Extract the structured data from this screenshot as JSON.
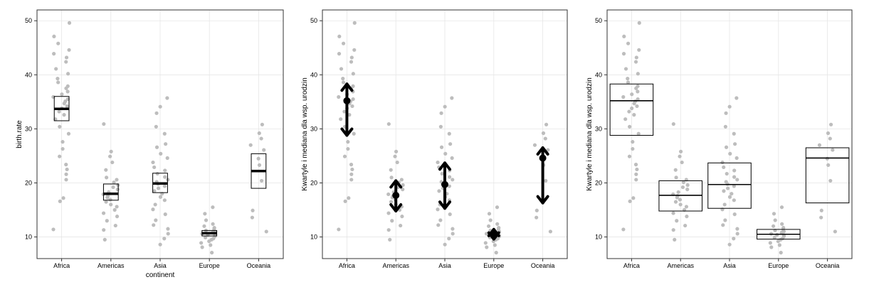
{
  "colors": {
    "point": "#bdbdbd",
    "grid": "#e6e6e6",
    "frame": "#333333",
    "mark": "#000000"
  },
  "chart_data": [
    {
      "type": "scatter",
      "variant": "box",
      "xlabel": "continent",
      "ylabel": "birth.rate",
      "categories": [
        "Africa",
        "Americas",
        "Asia",
        "Europe",
        "Oceania"
      ],
      "ylim": [
        6,
        52
      ],
      "yticks": [
        10,
        20,
        30,
        40,
        50
      ],
      "grid": true,
      "summary": [
        {
          "q1": 31.5,
          "median": 33.7,
          "q3": 36.0
        },
        {
          "q1": 16.8,
          "median": 18.0,
          "q3": 19.8
        },
        {
          "q1": 18.2,
          "median": 19.9,
          "q3": 21.8
        },
        {
          "q1": 10.2,
          "median": 10.7,
          "q3": 11.2
        },
        {
          "q1": 19.0,
          "median": 22.2,
          "q3": 25.4
        }
      ]
    },
    {
      "type": "scatter",
      "variant": "arrows",
      "xlabel": "",
      "ylabel": "Kwartyle i mediana dla wsp. urodzin",
      "categories": [
        "Africa",
        "Americas",
        "Asia",
        "Europe",
        "Oceania"
      ],
      "ylim": [
        6,
        52
      ],
      "yticks": [
        10,
        20,
        30,
        40,
        50
      ],
      "grid": true,
      "summary": [
        {
          "q1": 28.8,
          "median": 35.2,
          "q3": 38.3
        },
        {
          "q1": 14.8,
          "median": 17.7,
          "q3": 20.4
        },
        {
          "q1": 15.3,
          "median": 19.7,
          "q3": 23.7
        },
        {
          "q1": 9.6,
          "median": 10.5,
          "q3": 11.4
        },
        {
          "q1": 16.3,
          "median": 24.6,
          "q3": 26.5
        }
      ]
    },
    {
      "type": "scatter",
      "variant": "box",
      "xlabel": "",
      "ylabel": "Kwartyle i mediana dla wsp. urodzin",
      "categories": [
        "Africa",
        "Americas",
        "Asia",
        "Europe",
        "Oceania"
      ],
      "ylim": [
        6,
        52
      ],
      "yticks": [
        10,
        20,
        30,
        40,
        50
      ],
      "grid": true,
      "summary": [
        {
          "q1": 28.8,
          "median": 35.2,
          "q3": 38.3
        },
        {
          "q1": 14.8,
          "median": 17.7,
          "q3": 20.4
        },
        {
          "q1": 15.3,
          "median": 19.7,
          "q3": 23.7
        },
        {
          "q1": 9.6,
          "median": 10.5,
          "q3": 11.4
        },
        {
          "q1": 16.3,
          "median": 24.6,
          "q3": 26.5
        }
      ]
    }
  ],
  "points": {
    "Africa": [
      49.6,
      47.1,
      45.8,
      44.6,
      43.9,
      43.2,
      42.4,
      41.1,
      40.2,
      39.3,
      38.6,
      37.9,
      37.5,
      36.9,
      36.4,
      35.9,
      35.5,
      35.1,
      34.7,
      34.2,
      33.8,
      33.2,
      32.6,
      31.8,
      30.4,
      29.1,
      27.6,
      26.3,
      24.9,
      23.4,
      22.5,
      21.6,
      20.6,
      17.2,
      16.6,
      11.4
    ],
    "Americas": [
      30.9,
      25.8,
      24.9,
      23.8,
      22.4,
      21.0,
      20.6,
      20.1,
      19.6,
      19.2,
      18.8,
      18.3,
      17.9,
      17.6,
      17.3,
      16.9,
      16.5,
      16.0,
      15.6,
      15.0,
      14.4,
      13.8,
      13.0,
      12.1,
      11.3,
      9.5
    ],
    "Asia": [
      35.7,
      34.1,
      32.9,
      30.4,
      29.1,
      27.2,
      26.6,
      25.4,
      24.6,
      23.8,
      22.9,
      22.3,
      21.7,
      21.1,
      20.6,
      20.2,
      19.8,
      19.4,
      19.0,
      18.5,
      18.0,
      17.4,
      16.8,
      16.0,
      15.1,
      14.2,
      13.1,
      12.2,
      11.5,
      10.6,
      9.7,
      8.6
    ],
    "Europe": [
      15.5,
      14.3,
      13.1,
      12.4,
      12.0,
      11.7,
      11.4,
      11.2,
      11.0,
      10.8,
      10.6,
      10.4,
      10.3,
      10.1,
      9.9,
      9.7,
      9.5,
      9.2,
      8.9,
      8.5,
      8.1,
      7.1
    ],
    "Oceania": [
      30.8,
      29.2,
      28.2,
      27.0,
      26.1,
      24.5,
      23.3,
      20.4,
      14.9,
      13.6,
      11.0
    ]
  }
}
